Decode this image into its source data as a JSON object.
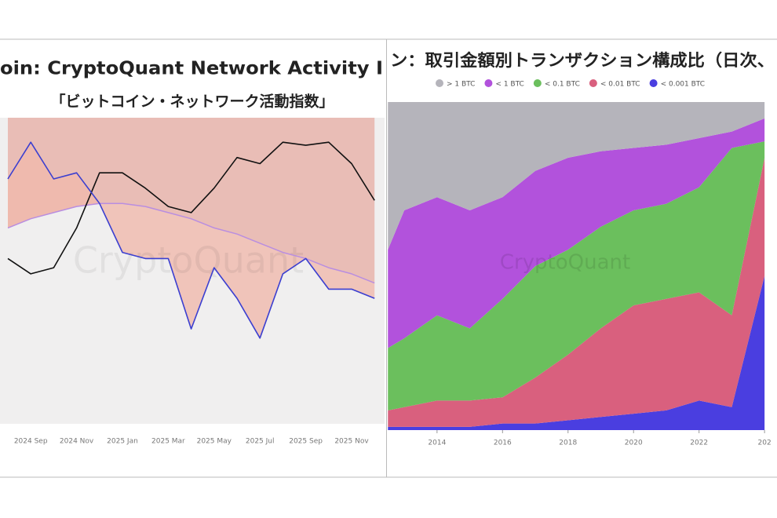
{
  "chart_data": [
    {
      "type": "line",
      "title": "oin: CryptoQuant Network Activity I",
      "subtitle": "「ビットコイン・ネットワーク活動指数」",
      "watermark": "CryptoQuant",
      "categories": [
        null,
        "2024 Sep",
        null,
        "2024 Nov",
        null,
        "2025 Jan",
        null,
        "2025 Mar",
        null,
        "2025 May",
        null,
        "2025 Jul",
        null,
        "2025 Sep",
        null,
        "2025 Nov",
        null
      ],
      "ylim": [
        0,
        100
      ],
      "series": [
        {
          "color": "#3b3fd0",
          "values": [
            80,
            92,
            80,
            82,
            72,
            56,
            54,
            54,
            31,
            51,
            41,
            28,
            49,
            54,
            44,
            44,
            41
          ]
        },
        {
          "color": "#111111",
          "values": [
            54,
            49,
            51,
            64,
            82,
            82,
            77,
            71,
            69,
            77,
            87,
            85,
            92,
            91,
            92,
            85,
            73
          ]
        },
        {
          "color": "#b98ee0",
          "values": [
            64,
            67,
            69,
            71,
            72,
            72,
            71,
            69,
            67,
            64,
            62,
            59,
            56,
            54,
            51,
            49,
            46
          ]
        }
      ]
    },
    {
      "type": "area",
      "stacked": true,
      "title": "ン：取引金額別トランザクション構成比（日次、",
      "watermark": "CryptoQuant",
      "x": [
        2012.5,
        2013,
        2014,
        2015,
        2016,
        2017,
        2018,
        2019,
        2020,
        2021,
        2022,
        2023,
        2024
      ],
      "xlim": [
        2012.47,
        2024.38
      ],
      "xticks": [
        2014,
        2016,
        2018,
        2020,
        2022,
        {
          "value": 2024,
          "label": "202"
        }
      ],
      "ylim": [
        0,
        100
      ],
      "series": [
        {
          "name": "> 1 BTC",
          "color": "#b5b4bb",
          "values": [
            45,
            33,
            29,
            33,
            29,
            21,
            17,
            15,
            14,
            13,
            11,
            9,
            5
          ]
        },
        {
          "name": "< 1 BTC",
          "color": "#b252dc",
          "values": [
            30,
            39,
            36,
            36,
            31,
            29,
            28,
            23,
            19,
            18,
            15,
            5,
            7
          ]
        },
        {
          "name": "< 0.1 BTC",
          "color": "#6bbf5d",
          "values": [
            19,
            21,
            26,
            22,
            30,
            34,
            32,
            31,
            29,
            29,
            32,
            51,
            5
          ]
        },
        {
          "name": "< 0.01 BTC",
          "color": "#d9607e",
          "values": [
            5,
            6,
            8,
            8,
            8,
            14,
            20,
            27,
            33,
            34,
            33,
            28,
            36
          ]
        },
        {
          "name": "< 0.001 BTC",
          "color": "#4a3ee0",
          "values": [
            1,
            1,
            1,
            1,
            2,
            2,
            3,
            4,
            5,
            6,
            9,
            7,
            47
          ]
        }
      ]
    }
  ]
}
